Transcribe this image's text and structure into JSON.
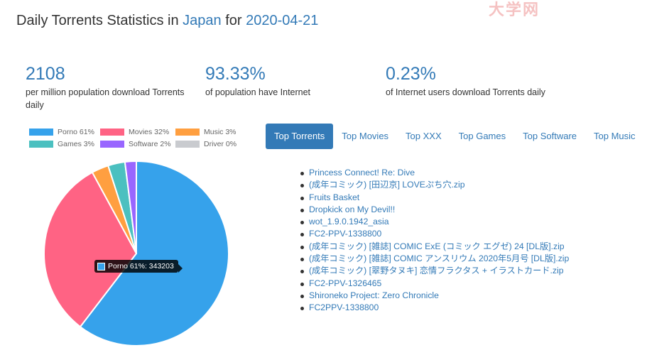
{
  "header": {
    "title_prefix": "Daily Torrents Statistics in",
    "country": "Japan",
    "title_for": "for",
    "date": "2020-04-21"
  },
  "watermark": "大学网",
  "stats": [
    {
      "value": "2108",
      "label": "per million population download Torrents daily"
    },
    {
      "value": "93.33%",
      "label": "of population have Internet"
    },
    {
      "value": "0.23%",
      "label": "of Internet users download Torrents daily"
    }
  ],
  "chart_data": {
    "type": "pie",
    "labels": [
      "Porno 61%",
      "Movies 32%",
      "Music 3%",
      "Games 3%",
      "Software 2%",
      "Driver 0%"
    ],
    "categories": [
      "Porno",
      "Movies",
      "Music",
      "Games",
      "Software",
      "Driver"
    ],
    "values": [
      61,
      32,
      3,
      3,
      2,
      0
    ],
    "colors": [
      "#36a2eb",
      "#ff6384",
      "#ff9f40",
      "#4bc0c0",
      "#9966ff",
      "#c9cbcf"
    ],
    "legend": "top",
    "tooltip": "Porno 61%: 343203"
  },
  "tabs": [
    "Top Torrents",
    "Top Movies",
    "Top XXX",
    "Top Games",
    "Top Software",
    "Top Music"
  ],
  "torrents": [
    "Princess Connect! Re: Dive",
    "(成年コミック) [田辺京] LOVEぷち穴.zip",
    "Fruits Basket",
    "Dropkick on My Devil!!",
    "wot_1.9.0.1942_asia",
    "FC2-PPV-1338800",
    "(成年コミック) [雑誌] COMIC ExE (コミック エグゼ) 24 [DL版].zip",
    "(成年コミック) [雑誌] COMIC アンスリウム 2020年5月号 [DL版].zip",
    "(成年コミック) [翠野タヌキ] 恋情フラクタス + イラストカード.zip",
    "FC2-PPV-1326465",
    "Shironeko Project: Zero Chronicle",
    "FC2PPV-1338800"
  ]
}
